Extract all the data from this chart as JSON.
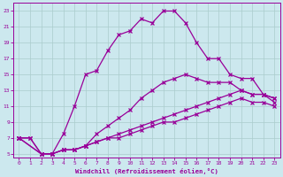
{
  "xlabel": "Windchill (Refroidissement éolien,°C)",
  "background_color": "#cce8ee",
  "line_color": "#990099",
  "grid_color": "#aacccc",
  "xlim": [
    -0.5,
    23.5
  ],
  "ylim": [
    4.5,
    24.0
  ],
  "xticks": [
    0,
    1,
    2,
    3,
    4,
    5,
    6,
    7,
    8,
    9,
    10,
    11,
    12,
    13,
    14,
    15,
    16,
    17,
    18,
    19,
    20,
    21,
    22,
    23
  ],
  "yticks": [
    5,
    7,
    9,
    11,
    13,
    15,
    17,
    19,
    21,
    23
  ],
  "line1_x": [
    0,
    1,
    2,
    3,
    4,
    5,
    6,
    7,
    8,
    9,
    10,
    11,
    12,
    13,
    14,
    15,
    16,
    17,
    18,
    19,
    20,
    21,
    22,
    23
  ],
  "line1_y": [
    7,
    7,
    5,
    5,
    7.5,
    11,
    15,
    15.5,
    18,
    20,
    20.5,
    22,
    21.5,
    23,
    23,
    21.5,
    19,
    17,
    17,
    15,
    14.5,
    14.5,
    12.5,
    12
  ],
  "line2_x": [
    0,
    1,
    2,
    3,
    4,
    5,
    6,
    7,
    8,
    9,
    10,
    11,
    12,
    13,
    14,
    15,
    16,
    17,
    18,
    19,
    20,
    21,
    22,
    23
  ],
  "line2_y": [
    7,
    7,
    5,
    5,
    5.5,
    5.5,
    6,
    7.5,
    8.5,
    9.5,
    10.5,
    12,
    13,
    14,
    14.5,
    15,
    14.5,
    14,
    14,
    14,
    13,
    12.5,
    12.5,
    12
  ],
  "line3_x": [
    0,
    2,
    3,
    4,
    5,
    6,
    7,
    8,
    9,
    10,
    11,
    12,
    13,
    14,
    15,
    16,
    17,
    18,
    19,
    20,
    21,
    22,
    23
  ],
  "line3_y": [
    7,
    5,
    5,
    5.5,
    5.5,
    6,
    6.5,
    7,
    7.5,
    8,
    8.5,
    9,
    9.5,
    10,
    10.5,
    11,
    11.5,
    12,
    12.5,
    13,
    12.5,
    12.5,
    11.5
  ],
  "line4_x": [
    0,
    2,
    3,
    4,
    5,
    6,
    7,
    8,
    9,
    10,
    11,
    12,
    13,
    14,
    15,
    16,
    17,
    18,
    19,
    20,
    21,
    22,
    23
  ],
  "line4_y": [
    7,
    5,
    5,
    5.5,
    5.5,
    6,
    6.5,
    7,
    7,
    7.5,
    8,
    8.5,
    9,
    9,
    9.5,
    10,
    10.5,
    11,
    11.5,
    12,
    11.5,
    11.5,
    11
  ]
}
